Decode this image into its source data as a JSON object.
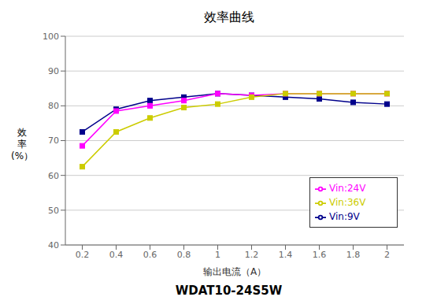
{
  "chart_data": {
    "type": "line",
    "title": "效率曲线",
    "xlabel": "输出电流（A）",
    "ylabel": "效\n率\n(%）",
    "annotations": [
      "WDAT10-24S5W"
    ],
    "x": [
      0.2,
      0.4,
      0.6,
      0.8,
      1.0,
      1.2,
      1.4,
      1.6,
      1.8,
      2.0
    ],
    "series": [
      {
        "name": "Vin:9V",
        "color": "#00008B",
        "marker": "square",
        "values": [
          72.5,
          79.0,
          81.5,
          82.5,
          83.5,
          83.0,
          82.5,
          82.0,
          81.0,
          80.5
        ]
      },
      {
        "name": "Vin:24V",
        "color": "#FF00FF",
        "marker": "square",
        "values": [
          68.5,
          78.5,
          80.0,
          81.5,
          83.5,
          83.0,
          83.5,
          83.5,
          83.5,
          83.5
        ]
      },
      {
        "name": "Vin:36V",
        "color": "#CCCC00",
        "marker": "square",
        "values": [
          62.5,
          72.5,
          76.5,
          79.5,
          80.5,
          82.5,
          83.5,
          83.5,
          83.5,
          83.5
        ]
      }
    ],
    "xlim": [
      0.1,
      2.1
    ],
    "ylim": [
      40,
      100
    ],
    "xticks": [
      0.2,
      0.4,
      0.6,
      0.8,
      1.0,
      1.2,
      1.4,
      1.6,
      1.8,
      2.0
    ],
    "yticks": [
      40,
      50,
      60,
      70,
      80,
      90,
      100
    ],
    "grid": "y",
    "legend": "lower right"
  }
}
